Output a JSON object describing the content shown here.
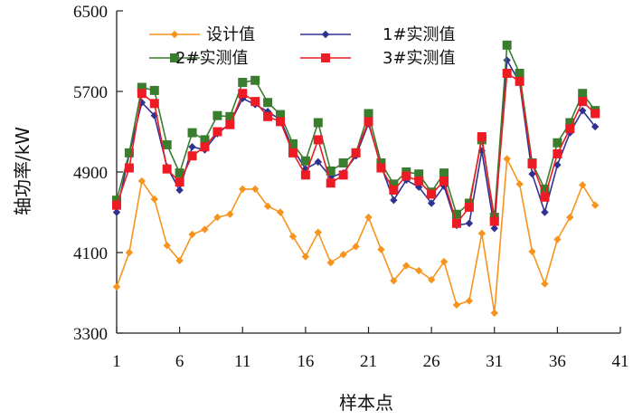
{
  "chart_data": {
    "type": "line",
    "title": "",
    "xlabel": "样本点",
    "ylabel": "轴功率/kW",
    "xlim": [
      1,
      41
    ],
    "ylim": [
      3300,
      6500
    ],
    "x_ticks": [
      1,
      6,
      11,
      16,
      21,
      26,
      31,
      36,
      41
    ],
    "y_ticks": [
      3300,
      4100,
      4900,
      5700,
      6500
    ],
    "grid": false,
    "legend_position": "top",
    "x": [
      1,
      2,
      3,
      4,
      5,
      6,
      7,
      8,
      9,
      10,
      11,
      12,
      13,
      14,
      15,
      16,
      17,
      18,
      19,
      20,
      21,
      22,
      23,
      24,
      25,
      26,
      27,
      28,
      29,
      30,
      31,
      32,
      33,
      34,
      35,
      36,
      37,
      38,
      39
    ],
    "series": [
      {
        "name": "设计值",
        "color": "#f7941d",
        "marker": "diamond",
        "values": [
          3760,
          4100,
          4810,
          4630,
          4170,
          4020,
          4280,
          4330,
          4450,
          4480,
          4730,
          4730,
          4560,
          4500,
          4260,
          4060,
          4300,
          4000,
          4080,
          4160,
          4450,
          4130,
          3820,
          3970,
          3920,
          3830,
          4010,
          3580,
          3620,
          4290,
          3500,
          5030,
          4780,
          4110,
          3790,
          4230,
          4450,
          4770,
          4570
        ]
      },
      {
        "name": "1#实测值",
        "color": "#2e3192",
        "marker": "diamond",
        "values": [
          4500,
          5080,
          5590,
          5460,
          4950,
          4720,
          5150,
          5120,
          5280,
          5380,
          5630,
          5570,
          5500,
          5420,
          5130,
          4930,
          5000,
          4850,
          4890,
          5060,
          5380,
          4960,
          4620,
          4820,
          4750,
          4590,
          4760,
          4370,
          4390,
          5110,
          4340,
          6010,
          5790,
          4880,
          4500,
          4970,
          5290,
          5510,
          5350
        ]
      },
      {
        "name": "2#实测值",
        "color": "#3a7d2e",
        "marker": "square",
        "values": [
          4620,
          5090,
          5740,
          5710,
          5170,
          4890,
          5290,
          5220,
          5460,
          5450,
          5790,
          5810,
          5590,
          5470,
          5180,
          5010,
          5390,
          4910,
          4990,
          5090,
          5480,
          4990,
          4780,
          4900,
          4880,
          4700,
          4890,
          4480,
          4590,
          5220,
          4450,
          6160,
          5880,
          4990,
          4730,
          5190,
          5390,
          5680,
          5510
        ]
      },
      {
        "name": "3#实测值",
        "color": "#ed1c24",
        "marker": "square",
        "values": [
          4570,
          4940,
          5680,
          5580,
          4930,
          4800,
          5060,
          5150,
          5300,
          5370,
          5680,
          5600,
          5450,
          5400,
          5090,
          4870,
          5220,
          4790,
          4870,
          5090,
          5400,
          4940,
          4720,
          4860,
          4810,
          4680,
          4810,
          4390,
          4550,
          5250,
          4410,
          5880,
          5800,
          4980,
          4650,
          5080,
          5330,
          5600,
          5480
        ]
      }
    ]
  }
}
